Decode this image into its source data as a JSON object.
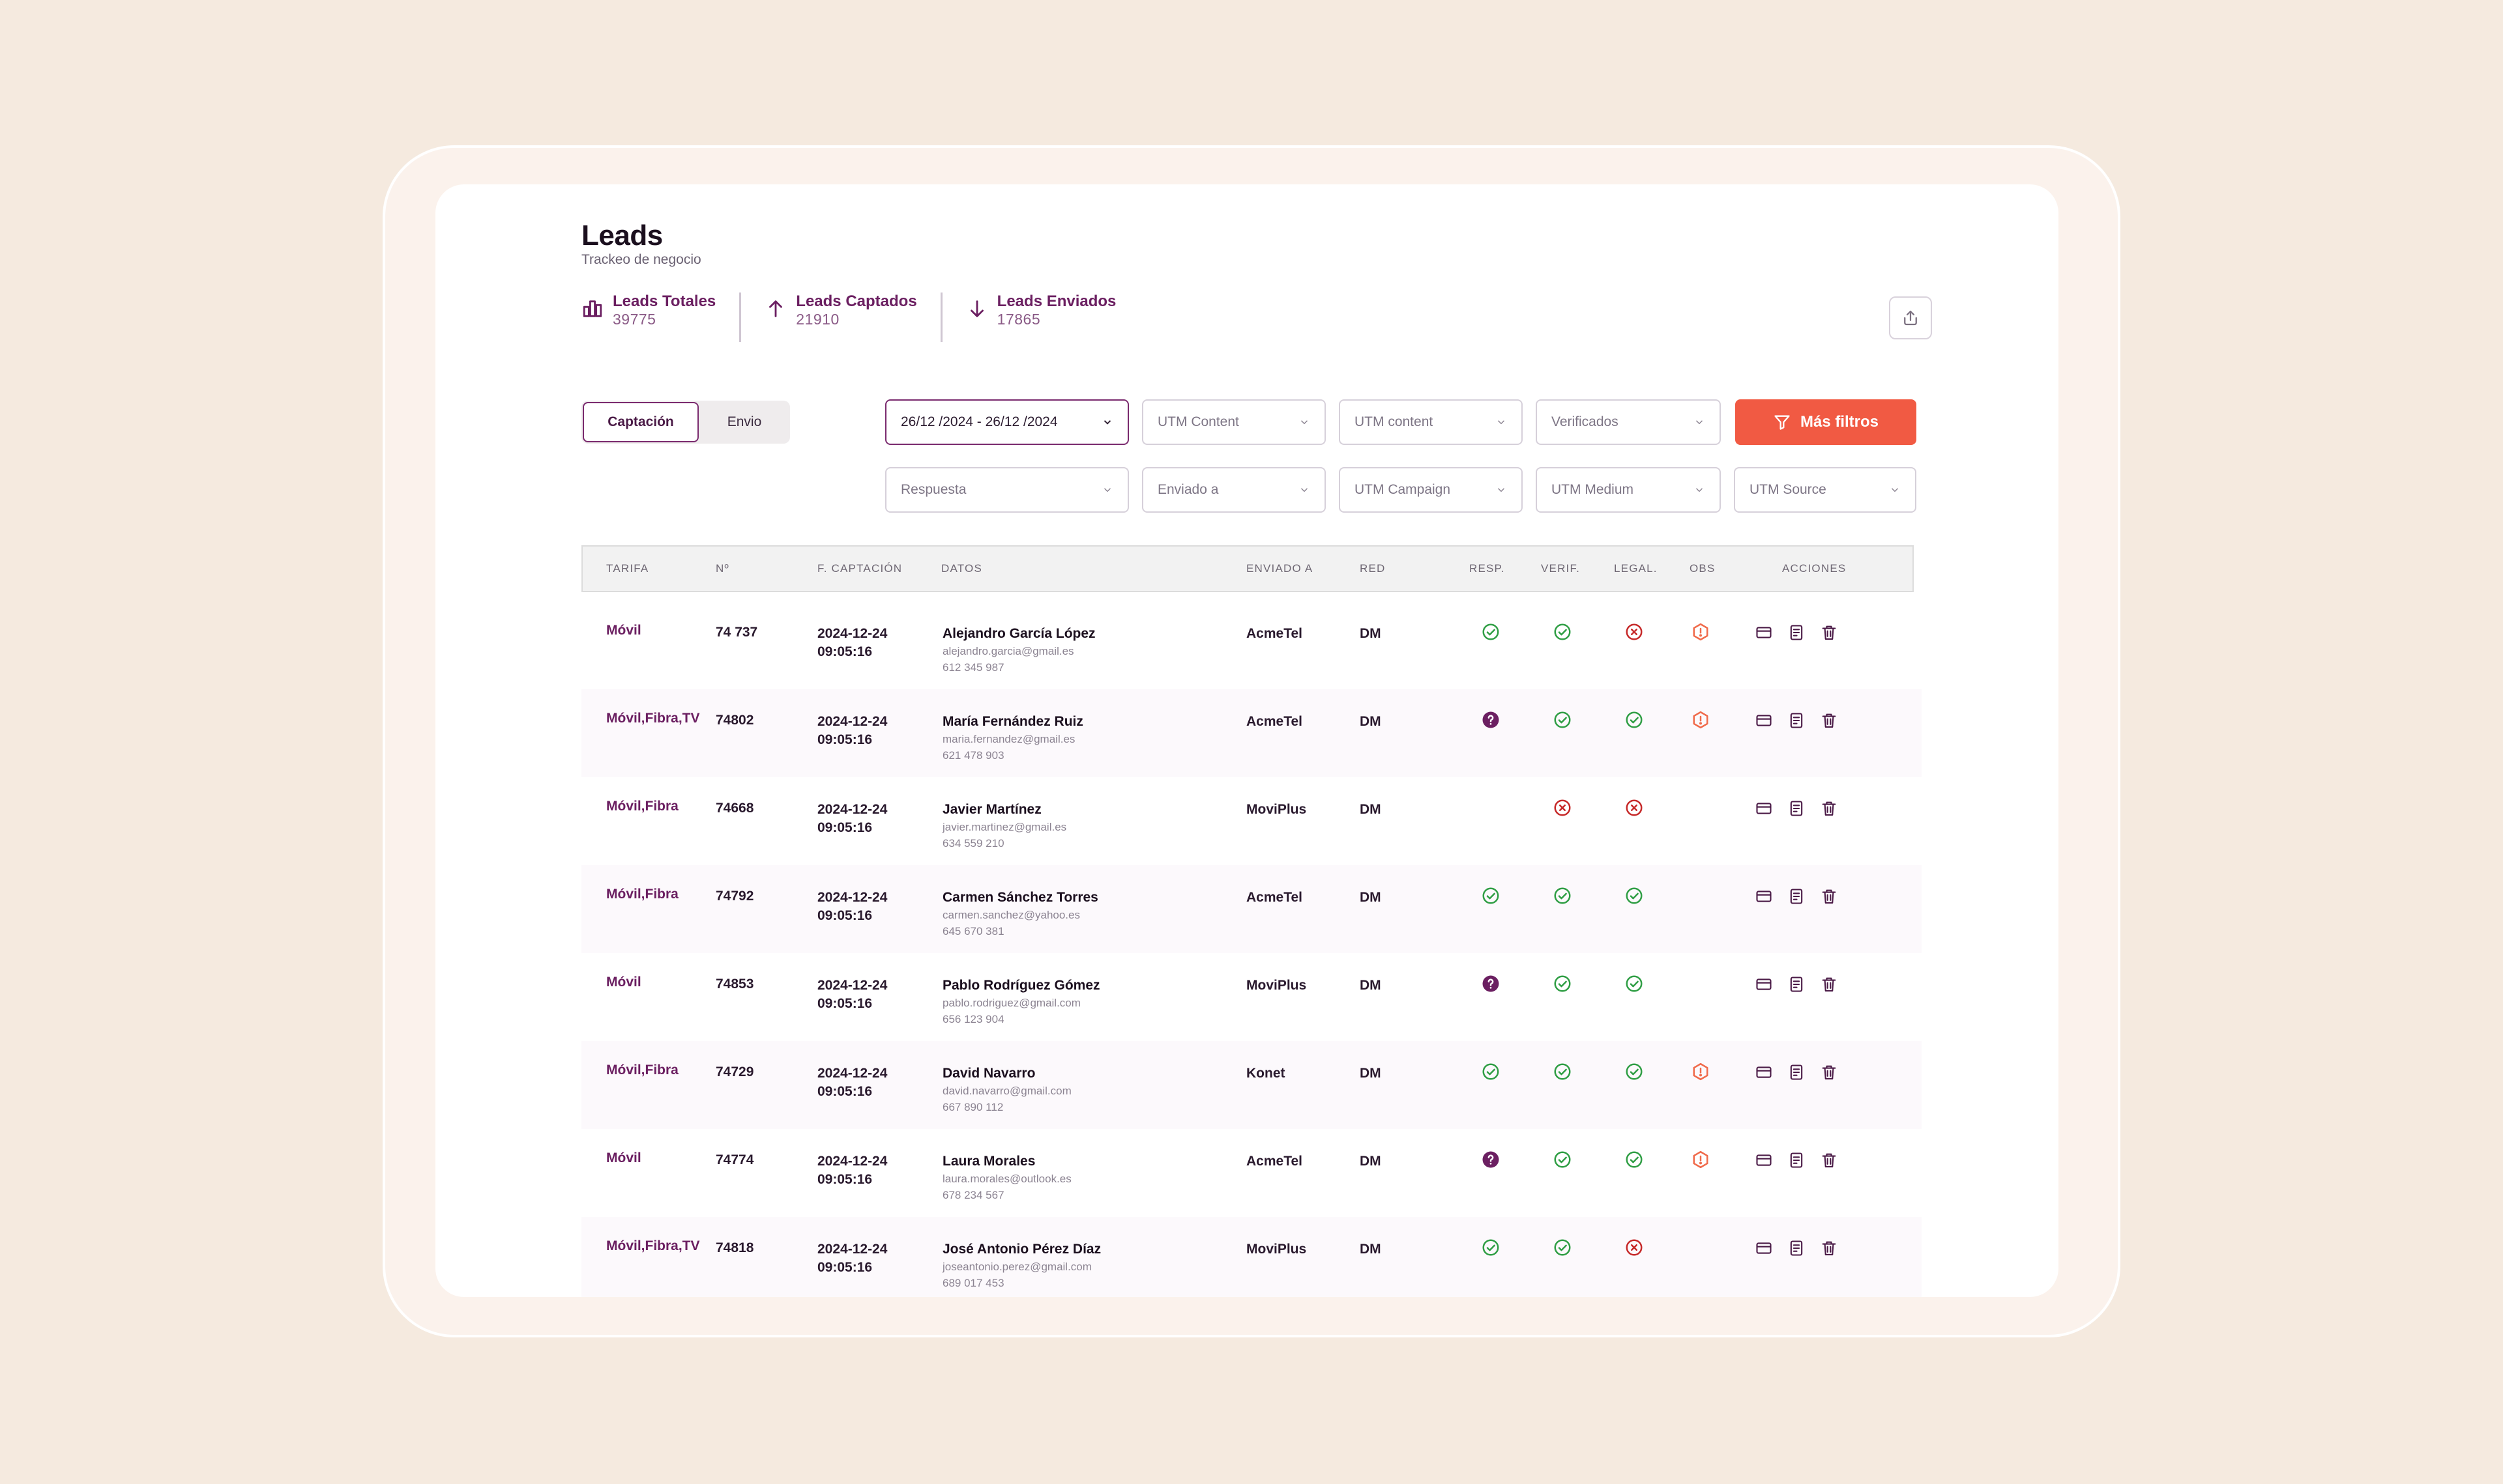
{
  "header": {
    "title": "Leads",
    "subtitle": "Trackeo de negocio"
  },
  "stats": [
    {
      "label": "Leads Totales",
      "value": "39775",
      "icon": "bar-chart-icon"
    },
    {
      "label": "Leads Captados",
      "value": "21910",
      "icon": "arrow-up-icon"
    },
    {
      "label": "Leads Enviados",
      "value": "17865",
      "icon": "arrow-down-icon"
    }
  ],
  "toggle": {
    "active": "Captación",
    "inactive": "Envio"
  },
  "filters": {
    "date": "26/12 /2024 -  26/12 /2024",
    "utm_content_1": "UTM Content",
    "utm_content_2": "UTM content",
    "verificados": "Verificados",
    "mas_filtros": "Más filtros",
    "respuesta": "Respuesta",
    "enviado_a": "Enviado a",
    "utm_campaign": "UTM Campaign",
    "utm_medium": "UTM Medium",
    "utm_source": "UTM Source"
  },
  "table": {
    "headers": {
      "tarifa": "TARIFA",
      "num": "Nº",
      "fecha": "F. CAPTACIÓN",
      "datos": "DATOS",
      "enviado": "ENVIADO A",
      "red": "RED",
      "resp": "RESP.",
      "verif": "VERIF.",
      "legal": "LEGAL.",
      "obs": "OBS",
      "acciones": "ACCIONES"
    },
    "rows": [
      {
        "tarifa": "Móvil",
        "num": "74 737",
        "date": "2024-12-24",
        "time": "09:05:16",
        "name": "Alejandro García López",
        "email": "alejandro.garcia@gmail.es",
        "phone": "612 345 987",
        "enviado": "AcmeTel",
        "red": "DM",
        "resp": "ok",
        "verif": "ok",
        "legal": "error",
        "obs": "warning"
      },
      {
        "tarifa": "Móvil,Fibra,TV",
        "num": "74802",
        "date": "2024-12-24",
        "time": "09:05:16",
        "name": "María Fernández Ruiz",
        "email": "maria.fernandez@gmail.es",
        "phone": "621 478 903",
        "enviado": "AcmeTel",
        "red": "DM",
        "resp": "question",
        "verif": "ok",
        "legal": "ok",
        "obs": "warning"
      },
      {
        "tarifa": "Móvil,Fibra",
        "num": "74668",
        "date": "2024-12-24",
        "time": "09:05:16",
        "name": "Javier Martínez",
        "email": "javier.martinez@gmail.es",
        "phone": "634 559 210",
        "enviado": "MoviPlus",
        "red": "DM",
        "resp": "",
        "verif": "error",
        "legal": "error",
        "obs": ""
      },
      {
        "tarifa": "Móvil,Fibra",
        "num": "74792",
        "date": "2024-12-24",
        "time": "09:05:16",
        "name": "Carmen Sánchez Torres",
        "email": "carmen.sanchez@yahoo.es",
        "phone": "645 670 381",
        "enviado": "AcmeTel",
        "red": "DM",
        "resp": "ok",
        "verif": "ok",
        "legal": "ok",
        "obs": ""
      },
      {
        "tarifa": "Móvil",
        "num": "74853",
        "date": "2024-12-24",
        "time": "09:05:16",
        "name": "Pablo Rodríguez Gómez",
        "email": "pablo.rodriguez@gmail.com",
        "phone": "656 123 904",
        "enviado": "MoviPlus",
        "red": "DM",
        "resp": "question",
        "verif": "ok",
        "legal": "ok",
        "obs": ""
      },
      {
        "tarifa": "Móvil,Fibra",
        "num": "74729",
        "date": "2024-12-24",
        "time": "09:05:16",
        "name": "David Navarro",
        "email": "david.navarro@gmail.com",
        "phone": "667 890 112",
        "enviado": "Konet",
        "red": "DM",
        "resp": "ok",
        "verif": "ok",
        "legal": "ok",
        "obs": "warning"
      },
      {
        "tarifa": "Móvil",
        "num": "74774",
        "date": "2024-12-24",
        "time": "09:05:16",
        "name": "Laura Morales",
        "email": "laura.morales@outlook.es",
        "phone": "678 234 567",
        "enviado": "AcmeTel",
        "red": "DM",
        "resp": "question",
        "verif": "ok",
        "legal": "ok",
        "obs": "warning"
      },
      {
        "tarifa": "Móvil,Fibra,TV",
        "num": "74818",
        "date": "2024-12-24",
        "time": "09:05:16",
        "name": "José Antonio Pérez Díaz",
        "email": "joseantonio.perez@gmail.com",
        "phone": "689 017 453",
        "enviado": "MoviPlus",
        "red": "DM",
        "resp": "ok",
        "verif": "ok",
        "legal": "error",
        "obs": ""
      }
    ]
  },
  "colors": {
    "accent": "#6b1f61",
    "cta": "#f15a43",
    "ok": "#2f9e44",
    "error": "#c62828",
    "warning": "#f06a4a",
    "question": "#6b1f61"
  }
}
